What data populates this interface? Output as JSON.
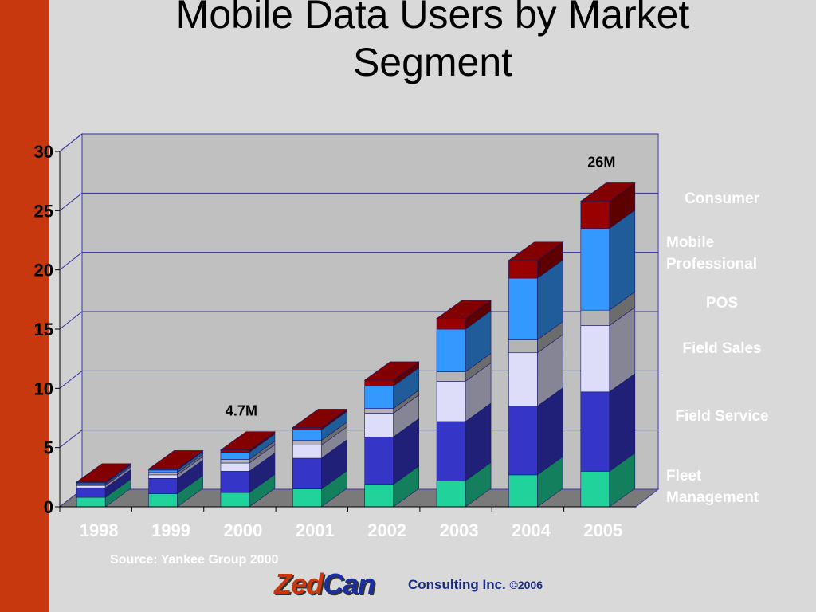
{
  "title": "Mobile Data Users by Market\nSegment",
  "chart_data": {
    "type": "bar",
    "stacked": true,
    "categories": [
      "1998",
      "1999",
      "2000",
      "2001",
      "2002",
      "2003",
      "2004",
      "2005"
    ],
    "ylim": [
      0,
      30
    ],
    "yticks": [
      "0",
      "5",
      "10",
      "15",
      "20",
      "25",
      "30"
    ],
    "grid": true,
    "series": [
      {
        "name": "Fleet Management",
        "color": "#1fd39a",
        "values": [
          0.8,
          1.1,
          1.2,
          1.5,
          1.9,
          2.2,
          2.7,
          3.0
        ]
      },
      {
        "name": "Field Service",
        "color": "#3535c8",
        "values": [
          0.8,
          1.3,
          1.8,
          2.6,
          4.0,
          5.0,
          5.8,
          6.7
        ]
      },
      {
        "name": "Field Sales",
        "color": "#ddddfa",
        "values": [
          0.2,
          0.3,
          0.7,
          1.1,
          2.0,
          3.4,
          4.5,
          5.6
        ]
      },
      {
        "name": "POS",
        "color": "#b4b4b4",
        "values": [
          0.1,
          0.2,
          0.3,
          0.4,
          0.4,
          0.8,
          1.1,
          1.3
        ]
      },
      {
        "name": "Mobile Professional",
        "color": "#3399ff",
        "values": [
          0.1,
          0.2,
          0.6,
          0.9,
          1.9,
          3.6,
          5.2,
          6.9
        ]
      },
      {
        "name": "Consumer",
        "color": "#990000",
        "values": [
          0.1,
          0.1,
          0.2,
          0.2,
          0.5,
          0.9,
          1.5,
          2.3
        ]
      }
    ],
    "annotations": [
      {
        "category": "2000",
        "text": "4.7M"
      },
      {
        "category": "2005",
        "text": "26M"
      }
    ]
  },
  "legend": {
    "consumer": "Consumer",
    "mobile_professional": "Mobile\nProfessional",
    "pos": "POS",
    "field_sales": "Field Sales",
    "field_service": "Field Service",
    "fleet_management": "Fleet\nManagement"
  },
  "source": "Source: Yankee Group 2000",
  "logo": {
    "part1": "Zed",
    "part2": "Can"
  },
  "company": {
    "name": "Consulting Inc.",
    "copyright": "©2006"
  }
}
